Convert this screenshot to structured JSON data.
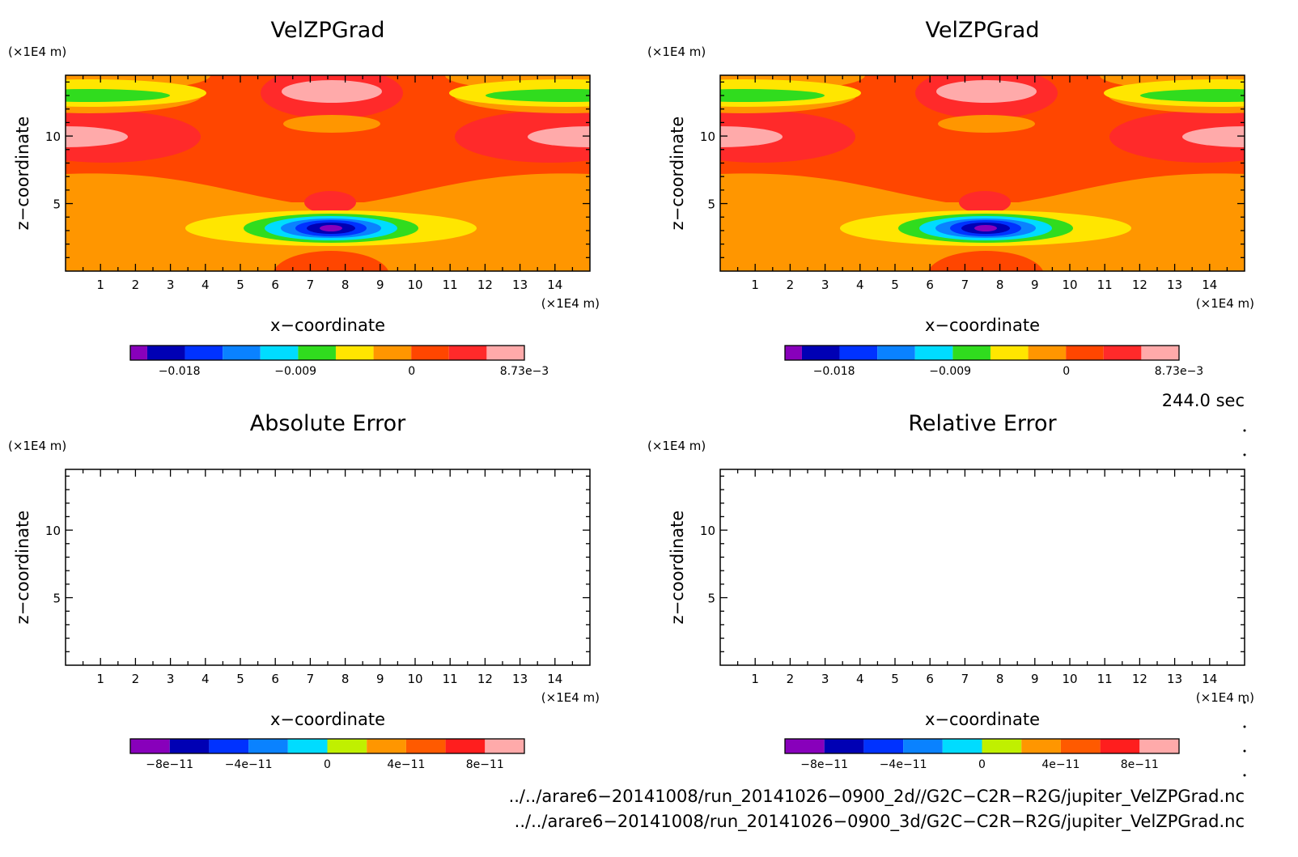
{
  "chart_data": [
    {
      "type": "heatmap",
      "title": "VelZPGrad",
      "xlabel": "x−coordinate",
      "ylabel": "z−coordinate",
      "x_unit": "(×1E4 m)",
      "y_unit": "(×1E4 m)",
      "xlim": [
        0,
        15
      ],
      "ylim": [
        0,
        14.5
      ],
      "x_ticks": [
        "1",
        "2",
        "3",
        "4",
        "5",
        "6",
        "7",
        "8",
        "9",
        "10",
        "11",
        "12",
        "13",
        "14"
      ],
      "y_ticks": [
        "5",
        "10"
      ],
      "colorbar": {
        "colors": [
          "#8800bb",
          "#0000b4",
          "#0032ff",
          "#0a82ff",
          "#00dcff",
          "#30dc1e",
          "#ffe600",
          "#ff9600",
          "#ff4600",
          "#ff2a2a",
          "#ffaaaa"
        ],
        "tick_labels": [
          "−0.018",
          "−0.009",
          "0",
          "8.73e−3"
        ],
        "range": [
          -0.0218,
          0.00873
        ]
      },
      "field": [
        {
          "center": [
            7.6,
            3.2
          ],
          "radius": [
            2.45,
            0.85
          ],
          "value": -0.0005,
          "note": "negative core to -0.0218"
        },
        {
          "center": [
            7.5,
            10.0
          ],
          "radius": [
            4.6,
            4.2
          ],
          "value": 0.0006
        }
      ]
    },
    {
      "type": "heatmap",
      "title": "VelZPGrad",
      "xlabel": "x−coordinate",
      "ylabel": "z−coordinate",
      "x_unit": "(×1E4 m)",
      "y_unit": "(×1E4 m)",
      "xlim": [
        0,
        15
      ],
      "ylim": [
        0,
        14.5
      ],
      "x_ticks": [
        "1",
        "2",
        "3",
        "4",
        "5",
        "6",
        "7",
        "8",
        "9",
        "10",
        "11",
        "12",
        "13",
        "14"
      ],
      "y_ticks": [
        "5",
        "10"
      ],
      "colorbar": {
        "colors": [
          "#8800bb",
          "#0000b4",
          "#0032ff",
          "#0a82ff",
          "#00dcff",
          "#30dc1e",
          "#ffe600",
          "#ff9600",
          "#ff4600",
          "#ff2a2a",
          "#ffaaaa"
        ],
        "tick_labels": [
          "−0.018",
          "−0.009",
          "0",
          "8.73e−3"
        ],
        "range": [
          -0.0218,
          0.00873
        ]
      }
    },
    {
      "type": "heatmap",
      "title": "Absolute Error",
      "xlabel": "x−coordinate",
      "ylabel": "z−coordinate",
      "x_unit": "(×1E4 m)",
      "y_unit": "(×1E4 m)",
      "xlim": [
        0,
        15
      ],
      "ylim": [
        0,
        14.5
      ],
      "x_ticks": [
        "1",
        "2",
        "3",
        "4",
        "5",
        "6",
        "7",
        "8",
        "9",
        "10",
        "11",
        "12",
        "13",
        "14"
      ],
      "y_ticks": [
        "5",
        "10"
      ],
      "values": "empty",
      "colorbar": {
        "colors": [
          "#8800bb",
          "#0000b4",
          "#0032ff",
          "#0a82ff",
          "#00dcff",
          "#c0f000",
          "#ff9600",
          "#ff5a00",
          "#ff1e1e",
          "#ffaaaa"
        ],
        "tick_labels": [
          "−8e−11",
          "−4e−11",
          "0",
          "4e−11",
          "8e−11"
        ],
        "range": [
          -1e-10,
          1e-10
        ]
      }
    },
    {
      "type": "heatmap",
      "title": "Relative Error",
      "xlabel": "x−coordinate",
      "ylabel": "z−coordinate",
      "x_unit": "(×1E4 m)",
      "y_unit": "(×1E4 m)",
      "xlim": [
        0,
        15
      ],
      "ylim": [
        0,
        14.5
      ],
      "x_ticks": [
        "1",
        "2",
        "3",
        "4",
        "5",
        "6",
        "7",
        "8",
        "9",
        "10",
        "11",
        "12",
        "13",
        "14"
      ],
      "y_ticks": [
        "5",
        "10"
      ],
      "values": "empty",
      "colorbar": {
        "colors": [
          "#8800bb",
          "#0000b4",
          "#0032ff",
          "#0a82ff",
          "#00dcff",
          "#c0f000",
          "#ff9600",
          "#ff5a00",
          "#ff1e1e",
          "#ffaaaa"
        ],
        "tick_labels": [
          "−8e−11",
          "−4e−11",
          "0",
          "4e−11",
          "8e−11"
        ],
        "range": [
          -1e-10,
          1e-10
        ]
      }
    }
  ],
  "time_label": "244.0 sec",
  "file_paths": [
    "../../arare6−20141008/run_20141026−0900_2d//G2C−C2R−R2G/jupiter_VelZPGrad.nc",
    "../../arare6−20141008/run_20141026−0900_3d/G2C−C2R−R2G/jupiter_VelZPGrad.nc"
  ]
}
